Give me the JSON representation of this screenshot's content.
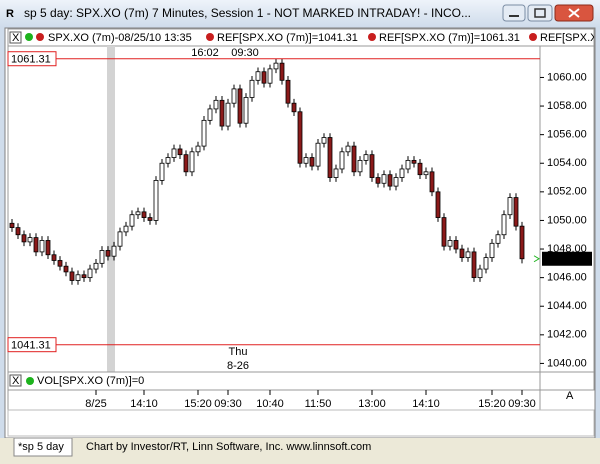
{
  "window": {
    "title": "sp 5 day: SPX.XO (7m) 7 Minutes, Session 1 - NOT MARKED INTRADAY! - INCO...",
    "legend": [
      "SPX.XO (7m)-08/25/10 13:35",
      "REF[SPX.XO (7m)]=1041.31",
      "REF[SPX.XO (7m)]=1061.31",
      "REF[SPX.XO (7m)"
    ],
    "volume_legend": "VOL[SPX.XO (7m)]=0",
    "volume_axis_label": "A",
    "tab": "*sp 5 day",
    "credit": "Chart by Investor/RT, Linn Software, Inc. www.linnsoft.com"
  },
  "chart_data": {
    "type": "candlestick",
    "series": [
      {
        "up_color": "#ffffff",
        "down_color": "#8b1a1a",
        "open": [
          1049.8,
          1049.5,
          1049.0,
          1048.5,
          1048.8,
          1047.8,
          1048.6,
          1047.6,
          1047.2,
          1046.8,
          1046.4,
          1045.8,
          1046.2,
          1046.0,
          1046.6,
          1047.0,
          1047.9,
          1047.5,
          1048.2,
          1049.2,
          1049.6,
          1050.4,
          1050.6,
          1050.2,
          1050.0,
          1052.8,
          1054.0,
          1054.4,
          1055.0,
          1054.6,
          1053.4,
          1054.8,
          1055.2,
          1057.0,
          1057.8,
          1058.4,
          1056.6,
          1058.2,
          1059.2,
          1056.8,
          1058.6,
          1059.8,
          1060.4,
          1059.6,
          1060.6,
          1061.0,
          1059.8,
          1058.2,
          1057.6,
          1054.0,
          1054.4,
          1053.8,
          1055.4,
          1055.8,
          1053.0,
          1053.6,
          1054.8,
          1055.2,
          1053.4,
          1054.2,
          1054.6,
          1053.0,
          1052.6,
          1053.2,
          1052.4,
          1053.0,
          1053.6,
          1054.2,
          1054.0,
          1053.2,
          1053.4,
          1052.0,
          1050.2,
          1048.2,
          1048.6,
          1048.0,
          1047.4,
          1047.8,
          1046.0,
          1046.6,
          1047.4,
          1048.4,
          1049.0,
          1050.4,
          1051.6,
          1049.6
        ],
        "high": [
          1050.1,
          1049.8,
          1049.3,
          1049.1,
          1049.1,
          1048.9,
          1048.9,
          1047.9,
          1047.5,
          1047.1,
          1046.7,
          1046.5,
          1046.5,
          1046.9,
          1047.3,
          1048.2,
          1048.2,
          1048.5,
          1049.5,
          1049.9,
          1050.7,
          1050.9,
          1050.9,
          1050.5,
          1053.1,
          1054.3,
          1054.7,
          1055.3,
          1055.3,
          1054.9,
          1055.1,
          1055.5,
          1057.3,
          1058.1,
          1058.7,
          1058.7,
          1058.5,
          1059.5,
          1059.5,
          1058.9,
          1060.1,
          1060.7,
          1060.7,
          1060.9,
          1061.3,
          1061.3,
          1060.1,
          1058.5,
          1057.9,
          1054.7,
          1054.7,
          1055.7,
          1056.1,
          1056.1,
          1053.9,
          1055.1,
          1055.5,
          1055.5,
          1054.5,
          1054.9,
          1054.9,
          1053.3,
          1053.5,
          1053.5,
          1053.3,
          1053.9,
          1054.5,
          1054.5,
          1054.3,
          1053.7,
          1053.7,
          1052.3,
          1050.5,
          1048.9,
          1048.9,
          1048.3,
          1048.1,
          1048.1,
          1046.9,
          1047.7,
          1048.7,
          1049.3,
          1050.7,
          1051.9,
          1051.9,
          1049.9
        ],
        "low": [
          1049.2,
          1048.7,
          1048.2,
          1048.2,
          1047.5,
          1047.5,
          1047.3,
          1046.9,
          1046.5,
          1046.1,
          1045.5,
          1045.5,
          1045.7,
          1045.7,
          1046.3,
          1046.7,
          1047.2,
          1047.2,
          1047.9,
          1048.9,
          1049.3,
          1050.1,
          1049.9,
          1049.7,
          1049.7,
          1052.5,
          1053.7,
          1054.1,
          1054.3,
          1053.1,
          1053.1,
          1054.5,
          1054.9,
          1056.7,
          1057.5,
          1056.3,
          1056.3,
          1057.9,
          1056.5,
          1056.5,
          1058.3,
          1059.5,
          1059.3,
          1059.3,
          1060.3,
          1059.5,
          1057.9,
          1057.3,
          1053.7,
          1053.7,
          1053.5,
          1053.5,
          1055.1,
          1052.7,
          1052.7,
          1053.3,
          1054.5,
          1053.1,
          1053.1,
          1053.9,
          1052.7,
          1052.3,
          1052.3,
          1052.1,
          1052.1,
          1052.7,
          1053.3,
          1053.7,
          1052.9,
          1052.9,
          1051.7,
          1049.9,
          1047.9,
          1047.9,
          1047.7,
          1047.1,
          1047.1,
          1045.7,
          1045.7,
          1046.3,
          1047.1,
          1048.1,
          1048.7,
          1050.1,
          1049.3,
          1047.0
        ],
        "close": [
          1049.5,
          1049.0,
          1048.5,
          1048.8,
          1047.8,
          1048.6,
          1047.6,
          1047.2,
          1046.8,
          1046.4,
          1045.8,
          1046.2,
          1046.0,
          1046.6,
          1047.0,
          1047.9,
          1047.5,
          1048.2,
          1049.2,
          1049.6,
          1050.4,
          1050.6,
          1050.2,
          1050.0,
          1052.8,
          1054.0,
          1054.4,
          1055.0,
          1054.6,
          1053.4,
          1054.8,
          1055.2,
          1057.0,
          1057.8,
          1058.4,
          1056.6,
          1058.2,
          1059.2,
          1056.8,
          1058.6,
          1059.8,
          1060.4,
          1059.6,
          1060.6,
          1061.0,
          1059.8,
          1058.2,
          1057.6,
          1054.0,
          1054.4,
          1053.8,
          1055.4,
          1055.8,
          1053.0,
          1053.6,
          1054.8,
          1055.2,
          1053.4,
          1054.2,
          1054.6,
          1053.0,
          1052.6,
          1053.2,
          1052.4,
          1053.0,
          1053.6,
          1054.2,
          1054.0,
          1053.2,
          1053.4,
          1052.0,
          1050.2,
          1048.2,
          1048.6,
          1048.0,
          1047.4,
          1047.8,
          1046.0,
          1046.6,
          1047.4,
          1048.4,
          1049.0,
          1050.4,
          1051.6,
          1049.6,
          1047.32
        ]
      }
    ],
    "ylim": [
      1039.4,
      1062.2
    ],
    "yticks": [
      {
        "value": 1040,
        "label": "1040.00"
      },
      {
        "value": 1042,
        "label": "1042.00"
      },
      {
        "value": 1044,
        "label": "1044.00"
      },
      {
        "value": 1046,
        "label": "1046.00"
      },
      {
        "value": 1048,
        "label": "1048.00"
      },
      {
        "value": 1050,
        "label": "1050.00"
      },
      {
        "value": 1052,
        "label": "1052.00"
      },
      {
        "value": 1054,
        "label": "1054.00"
      },
      {
        "value": 1056,
        "label": "1056.00"
      },
      {
        "value": 1058,
        "label": "1058.00"
      },
      {
        "value": 1060,
        "label": "1060.00"
      }
    ],
    "xticks": [
      {
        "value": 14,
        "label": "8/25"
      },
      {
        "value": 22,
        "label": "14:10"
      },
      {
        "value": 31,
        "label": "15:20"
      },
      {
        "value": 36,
        "label": "09:30"
      },
      {
        "value": 43,
        "label": "10:40"
      },
      {
        "value": 51,
        "label": "11:50"
      },
      {
        "value": 60,
        "label": "13:00"
      },
      {
        "value": 69,
        "label": "14:10"
      },
      {
        "value": 80,
        "label": "15:20"
      },
      {
        "value": 85,
        "label": "09:30"
      }
    ],
    "ref_lines": [
      {
        "value": 1061.31,
        "color": "#e02020"
      },
      {
        "value": 1041.31,
        "color": "#e02020"
      }
    ],
    "last_price": 1047.32,
    "annotations": [
      "16:02",
      "09:30",
      "Thu",
      "8-26"
    ],
    "grid": false
  }
}
